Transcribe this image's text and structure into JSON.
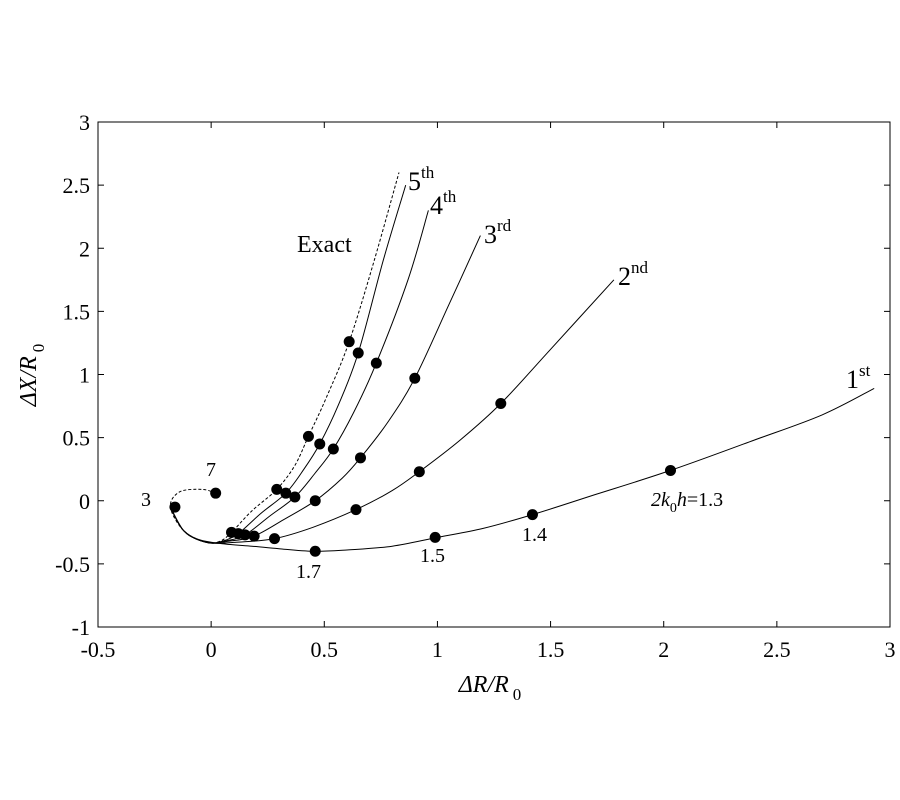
{
  "chart_data": {
    "type": "line",
    "xlabel": {
      "base": "ΔR/R",
      "sub": "0"
    },
    "ylabel": {
      "base": "ΔX/R",
      "sub": "0"
    },
    "xlim": [
      -0.5,
      3
    ],
    "ylim": [
      -1,
      3
    ],
    "xticks": [
      "-0.5",
      "0",
      "0.5",
      "1",
      "1.5",
      "2",
      "2.5",
      "3"
    ],
    "yticks": [
      "-1",
      "-0.5",
      "0",
      "0.5",
      "1",
      "1.5",
      "2",
      "2.5",
      "3"
    ],
    "grid": false,
    "series": [
      {
        "name": "1",
        "name_sup": "st",
        "style": "solid",
        "x": [
          -0.18,
          -0.12,
          -0.05,
          0.05,
          0.18,
          0.3,
          0.45,
          0.6,
          0.8,
          1.0,
          1.2,
          1.42,
          1.7,
          2.03,
          2.4,
          2.7,
          2.93
        ],
        "y": [
          -0.05,
          -0.24,
          -0.31,
          -0.34,
          -0.36,
          -0.38,
          -0.4,
          -0.39,
          -0.36,
          -0.29,
          -0.22,
          -0.11,
          0.05,
          0.24,
          0.48,
          0.68,
          0.89
        ],
        "markers": [
          [
            0.46,
            -0.4
          ],
          [
            0.99,
            -0.29
          ],
          [
            1.42,
            -0.11
          ],
          [
            2.03,
            0.24
          ]
        ]
      },
      {
        "name": "2",
        "name_sup": "nd",
        "style": "solid",
        "x": [
          -0.18,
          -0.12,
          -0.02,
          0.1,
          0.28,
          0.45,
          0.64,
          0.8,
          0.92,
          1.1,
          1.28,
          1.5,
          1.78
        ],
        "y": [
          -0.05,
          -0.24,
          -0.33,
          -0.33,
          -0.3,
          -0.21,
          -0.07,
          0.08,
          0.23,
          0.48,
          0.77,
          1.2,
          1.75
        ],
        "markers": [
          [
            0.28,
            -0.3
          ],
          [
            0.64,
            -0.07
          ],
          [
            0.92,
            0.23
          ],
          [
            1.28,
            0.77
          ]
        ]
      },
      {
        "name": "3",
        "name_sup": "rd",
        "style": "solid",
        "x": [
          -0.18,
          -0.12,
          -0.02,
          0.08,
          0.19,
          0.32,
          0.46,
          0.58,
          0.66,
          0.78,
          0.9,
          1.05,
          1.19
        ],
        "y": [
          -0.05,
          -0.24,
          -0.33,
          -0.32,
          -0.28,
          -0.15,
          0.0,
          0.18,
          0.34,
          0.62,
          0.97,
          1.55,
          2.1
        ],
        "markers": [
          [
            0.19,
            -0.28
          ],
          [
            0.46,
            0.0
          ],
          [
            0.66,
            0.34
          ],
          [
            0.9,
            0.97
          ]
        ]
      },
      {
        "name": "4",
        "name_sup": "th",
        "style": "solid",
        "x": [
          -0.18,
          -0.12,
          -0.02,
          0.06,
          0.15,
          0.26,
          0.37,
          0.46,
          0.54,
          0.63,
          0.73,
          0.87,
          0.96
        ],
        "y": [
          -0.05,
          -0.24,
          -0.33,
          -0.32,
          -0.27,
          -0.12,
          0.03,
          0.22,
          0.41,
          0.7,
          1.09,
          1.75,
          2.3
        ],
        "markers": [
          [
            0.15,
            -0.27
          ],
          [
            0.37,
            0.03
          ],
          [
            0.54,
            0.41
          ],
          [
            0.73,
            1.09
          ]
        ]
      },
      {
        "name": "5",
        "name_sup": "th",
        "style": "solid",
        "x": [
          -0.18,
          -0.12,
          -0.02,
          0.05,
          0.12,
          0.22,
          0.33,
          0.41,
          0.48,
          0.56,
          0.65,
          0.76,
          0.86
        ],
        "y": [
          -0.05,
          -0.24,
          -0.33,
          -0.32,
          -0.26,
          -0.1,
          0.06,
          0.25,
          0.45,
          0.75,
          1.17,
          1.9,
          2.5
        ],
        "markers": [
          [
            0.12,
            -0.26
          ],
          [
            0.33,
            0.06
          ],
          [
            0.48,
            0.45
          ],
          [
            0.65,
            1.17
          ]
        ]
      },
      {
        "name": "Exact",
        "style": "dashed",
        "x": [
          0.02,
          -0.04,
          -0.14,
          -0.18,
          -0.12,
          -0.02,
          0.04,
          0.09,
          0.18,
          0.29,
          0.37,
          0.43,
          0.51,
          0.61,
          0.72,
          0.83
        ],
        "y": [
          0.06,
          0.09,
          0.07,
          -0.05,
          -0.24,
          -0.33,
          -0.32,
          -0.25,
          -0.08,
          0.09,
          0.28,
          0.51,
          0.82,
          1.26,
          1.9,
          2.6
        ],
        "markers": [
          [
            0.02,
            0.06
          ],
          [
            -0.16,
            -0.05
          ],
          [
            0.09,
            -0.25
          ],
          [
            0.29,
            0.09
          ],
          [
            0.43,
            0.51
          ],
          [
            0.61,
            1.26
          ]
        ]
      }
    ],
    "labels": {
      "s1": {
        "num": "1",
        "sup": "st"
      },
      "s2": {
        "num": "2",
        "sup": "nd"
      },
      "s3": {
        "num": "3",
        "sup": "rd"
      },
      "s4": {
        "num": "4",
        "sup": "th"
      },
      "s5": {
        "num": "5",
        "sup": "th"
      },
      "exact": "Exact"
    },
    "annotations": {
      "param_prefix": "2k",
      "param_sub": "0",
      "param_var": "h",
      "param_value": "=1.3",
      "a14": "1.4",
      "a15": "1.5",
      "a17": "1.7",
      "a3": "3",
      "a7": "7"
    }
  }
}
